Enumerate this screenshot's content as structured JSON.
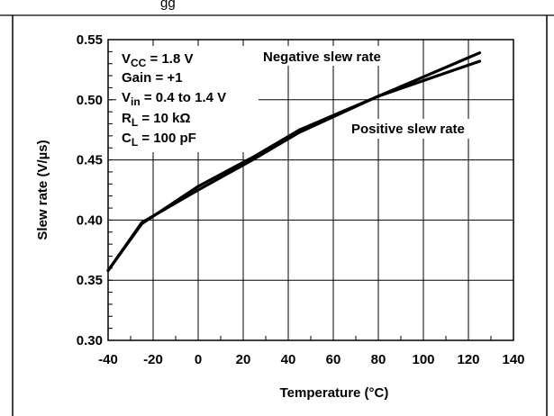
{
  "chart_data": {
    "type": "line",
    "title": "",
    "xlabel": "Temperature (°C)",
    "ylabel": "Slew rate (V/µs)",
    "xlim": [
      -40,
      140
    ],
    "ylim": [
      0.3,
      0.55
    ],
    "x_ticks": [
      -40,
      -20,
      0,
      20,
      40,
      60,
      80,
      100,
      120,
      140
    ],
    "y_ticks": [
      0.3,
      0.35,
      0.4,
      0.45,
      0.5,
      0.55
    ],
    "x_tick_labels": [
      "-40",
      "-20",
      "0",
      "20",
      "40",
      "60",
      "80",
      "100",
      "120",
      "140"
    ],
    "y_tick_labels": [
      "0.30",
      "0.35",
      "0.40",
      "0.45",
      "0.50",
      "0.55"
    ],
    "grid": true,
    "series": [
      {
        "name": "Negative slew rate",
        "x": [
          -40,
          -25,
          0,
          25,
          45,
          80,
          125
        ],
        "y": [
          0.358,
          0.397,
          0.428,
          0.453,
          0.475,
          0.503,
          0.539
        ]
      },
      {
        "name": "Positive slew rate",
        "x": [
          -40,
          -25,
          0,
          25,
          45,
          80,
          125
        ],
        "y": [
          0.358,
          0.398,
          0.425,
          0.451,
          0.473,
          0.503,
          0.532
        ]
      }
    ],
    "conditions": [
      {
        "main": "V",
        "sub": "CC",
        "rest": " = 1.8 V"
      },
      {
        "main": "Gain = +1",
        "sub": "",
        "rest": ""
      },
      {
        "main": "V",
        "sub": "in",
        "rest": " = 0.4 to 1.4 V"
      },
      {
        "main": "R",
        "sub": "L",
        "rest": " = 10 kΩ"
      },
      {
        "main": "C",
        "sub": "L",
        "rest": " = 100 pF"
      }
    ],
    "top_fragment": "gg",
    "colors": {
      "line": "#000000",
      "grid": "#000000",
      "background": "#ffffff"
    }
  }
}
